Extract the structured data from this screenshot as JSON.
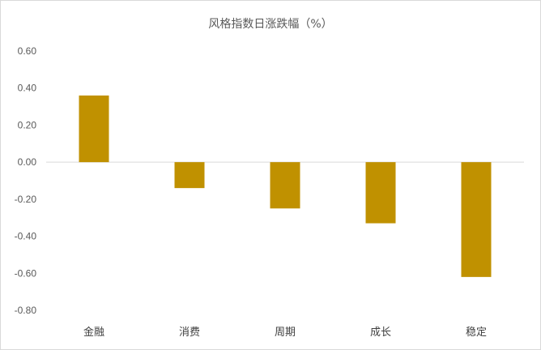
{
  "chart_data": {
    "type": "bar",
    "title": "风格指数日涨跌幅（%）",
    "categories": [
      "金融",
      "消费",
      "周期",
      "成长",
      "稳定"
    ],
    "series": [
      {
        "values": [
          0.36,
          -0.14,
          -0.25,
          -0.33,
          -0.62
        ],
        "color": "#C09100"
      }
    ],
    "ylim": [
      -0.8,
      0.6
    ],
    "yticks": [
      "0.60",
      "0.40",
      "0.20",
      "0.00",
      "-0.20",
      "-0.40",
      "-0.60",
      "-0.80"
    ],
    "grid": false,
    "legend": "none",
    "axis_color": "#d9d9d9"
  }
}
